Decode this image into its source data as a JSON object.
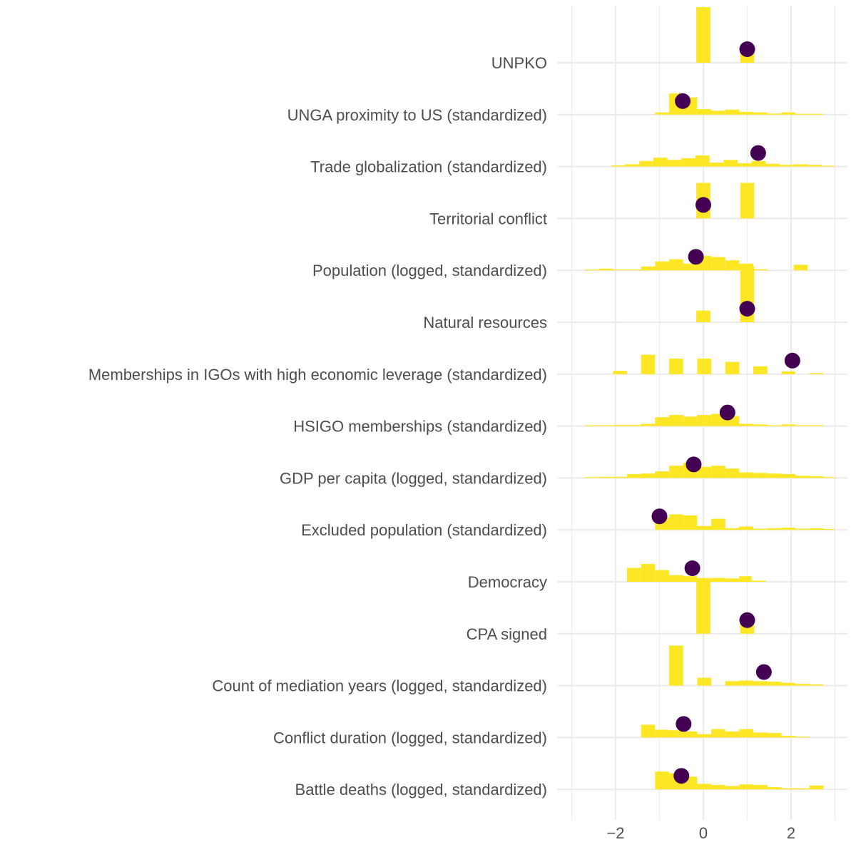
{
  "chart_data": {
    "type": "histogram-dot",
    "title": "",
    "xlabel": "",
    "ylabel": "",
    "xlim": [
      -3.05,
      3.2
    ],
    "x_ticks": [
      -2,
      0,
      2
    ],
    "x_tick_labels": [
      "−2",
      "0",
      "2"
    ],
    "grid": true,
    "bar_color": "#FDE725",
    "dot_color": "#440154",
    "categories": [
      {
        "label": "UNPKO",
        "point": 1.0,
        "bars": [
          [
            -0.16,
            0.16,
            1.0
          ],
          [
            0.84,
            1.16,
            0.22
          ]
        ]
      },
      {
        "label": "UNGA proximity to US (standardized)",
        "point": -0.47,
        "bars": [
          [
            -1.1,
            -0.78,
            0.04
          ],
          [
            -0.78,
            -0.46,
            0.38
          ],
          [
            -0.46,
            -0.14,
            0.31
          ],
          [
            -0.14,
            0.18,
            0.1
          ],
          [
            0.18,
            0.5,
            0.07
          ],
          [
            0.5,
            0.82,
            0.09
          ],
          [
            0.82,
            1.14,
            0.05
          ],
          [
            1.14,
            1.46,
            0.04
          ],
          [
            1.46,
            1.78,
            0.02
          ],
          [
            1.78,
            2.1,
            0.04
          ],
          [
            2.1,
            2.42,
            0.01
          ],
          [
            2.42,
            2.74,
            0.01
          ]
        ]
      },
      {
        "label": "Trade globalization (standardized)",
        "point": 1.25,
        "bars": [
          [
            -2.1,
            -1.78,
            0.02
          ],
          [
            -1.78,
            -1.46,
            0.04
          ],
          [
            -1.46,
            -1.14,
            0.1
          ],
          [
            -1.14,
            -0.82,
            0.16
          ],
          [
            -0.82,
            -0.5,
            0.12
          ],
          [
            -0.5,
            -0.18,
            0.15
          ],
          [
            -0.18,
            0.14,
            0.2
          ],
          [
            0.14,
            0.46,
            0.07
          ],
          [
            0.46,
            0.78,
            0.12
          ],
          [
            0.78,
            1.1,
            0.06
          ],
          [
            1.1,
            1.42,
            0.1
          ],
          [
            1.42,
            1.74,
            0.05
          ],
          [
            1.74,
            2.06,
            0.03
          ],
          [
            2.06,
            2.38,
            0.04
          ],
          [
            2.38,
            2.7,
            0.03
          ],
          [
            2.7,
            3.0,
            0.01
          ]
        ]
      },
      {
        "label": "Territorial conflict",
        "point": 0.0,
        "bars": [
          [
            -0.16,
            0.16,
            0.64
          ],
          [
            0.84,
            1.16,
            0.64
          ]
        ]
      },
      {
        "label": "Population (logged, standardized)",
        "point": -0.17,
        "bars": [
          [
            -2.7,
            -2.38,
            0.01
          ],
          [
            -2.38,
            -2.06,
            0.03
          ],
          [
            -2.06,
            -1.74,
            0.01
          ],
          [
            -1.74,
            -1.42,
            0.01
          ],
          [
            -1.42,
            -1.1,
            0.07
          ],
          [
            -1.1,
            -0.78,
            0.16
          ],
          [
            -0.78,
            -0.46,
            0.2
          ],
          [
            -0.46,
            -0.14,
            0.12
          ],
          [
            -0.14,
            0.18,
            0.26
          ],
          [
            0.18,
            0.5,
            0.24
          ],
          [
            0.5,
            0.82,
            0.18
          ],
          [
            0.82,
            1.14,
            0.12
          ],
          [
            1.14,
            1.46,
            0.02
          ],
          [
            2.06,
            2.38,
            0.1
          ]
        ]
      },
      {
        "label": "Natural resources",
        "point": 1.0,
        "bars": [
          [
            -0.16,
            0.16,
            0.21
          ],
          [
            0.84,
            1.16,
            1.0
          ]
        ]
      },
      {
        "label": "Memberships in IGOs with high economic leverage (standardized)",
        "point": 2.03,
        "bars": [
          [
            -2.06,
            -1.74,
            0.06
          ],
          [
            -1.42,
            -1.1,
            0.35
          ],
          [
            -0.78,
            -0.46,
            0.28
          ],
          [
            -0.14,
            0.18,
            0.28
          ],
          [
            0.5,
            0.82,
            0.22
          ],
          [
            1.14,
            1.46,
            0.14
          ],
          [
            1.78,
            2.1,
            0.05
          ],
          [
            2.42,
            2.74,
            0.02
          ]
        ]
      },
      {
        "label": "HSIGO memberships (standardized)",
        "point": 0.55,
        "bars": [
          [
            -2.7,
            -2.38,
            0.01
          ],
          [
            -2.38,
            -2.06,
            0.01
          ],
          [
            -2.06,
            -1.74,
            0.02
          ],
          [
            -1.74,
            -1.42,
            0.02
          ],
          [
            -1.42,
            -1.1,
            0.04
          ],
          [
            -1.1,
            -0.78,
            0.16
          ],
          [
            -0.78,
            -0.46,
            0.2
          ],
          [
            -0.46,
            -0.14,
            0.17
          ],
          [
            -0.14,
            0.18,
            0.2
          ],
          [
            0.18,
            0.5,
            0.22
          ],
          [
            0.5,
            0.82,
            0.18
          ],
          [
            0.82,
            1.14,
            0.04
          ],
          [
            1.14,
            1.46,
            0.03
          ],
          [
            1.46,
            1.78,
            0.01
          ],
          [
            1.78,
            2.1,
            0.03
          ],
          [
            2.1,
            2.42,
            0.01
          ],
          [
            2.42,
            2.74,
            0.01
          ]
        ]
      },
      {
        "label": "GDP per capita (logged, standardized)",
        "point": -0.22,
        "bars": [
          [
            -2.7,
            -2.38,
            0.01
          ],
          [
            -2.38,
            -2.06,
            0.02
          ],
          [
            -2.06,
            -1.74,
            0.02
          ],
          [
            -1.74,
            -1.42,
            0.07
          ],
          [
            -1.42,
            -1.1,
            0.08
          ],
          [
            -1.1,
            -0.78,
            0.12
          ],
          [
            -0.78,
            -0.46,
            0.22
          ],
          [
            -0.46,
            -0.14,
            0.27
          ],
          [
            -0.14,
            0.18,
            0.2
          ],
          [
            0.18,
            0.5,
            0.22
          ],
          [
            0.5,
            0.82,
            0.17
          ],
          [
            0.82,
            1.14,
            0.1
          ],
          [
            1.14,
            1.46,
            0.09
          ],
          [
            1.46,
            1.78,
            0.08
          ],
          [
            1.78,
            2.1,
            0.07
          ],
          [
            2.1,
            2.42,
            0.04
          ],
          [
            2.42,
            2.74,
            0.03
          ],
          [
            2.74,
            3.0,
            0.01
          ]
        ]
      },
      {
        "label": "Excluded population (standardized)",
        "point": -1.0,
        "bars": [
          [
            -1.1,
            -0.78,
            0.22
          ],
          [
            -0.78,
            -0.46,
            0.28
          ],
          [
            -0.46,
            -0.14,
            0.26
          ],
          [
            -0.14,
            0.18,
            0.07
          ],
          [
            0.18,
            0.5,
            0.2
          ],
          [
            0.5,
            0.82,
            0.03
          ],
          [
            0.82,
            1.14,
            0.06
          ],
          [
            1.14,
            1.46,
            0.02
          ],
          [
            1.46,
            1.78,
            0.03
          ],
          [
            1.78,
            2.1,
            0.04
          ],
          [
            2.1,
            2.42,
            0.02
          ],
          [
            2.42,
            2.74,
            0.03
          ],
          [
            2.74,
            3.0,
            0.01
          ]
        ]
      },
      {
        "label": "Democracy",
        "point": -0.25,
        "bars": [
          [
            -1.74,
            -1.42,
            0.25
          ],
          [
            -1.42,
            -1.1,
            0.32
          ],
          [
            -1.1,
            -0.78,
            0.21
          ],
          [
            -0.78,
            -0.46,
            0.12
          ],
          [
            -0.46,
            -0.14,
            0.1
          ],
          [
            -0.14,
            0.18,
            0.06
          ],
          [
            0.18,
            0.5,
            0.07
          ],
          [
            0.5,
            0.82,
            0.06
          ],
          [
            0.82,
            1.1,
            0.1
          ],
          [
            1.1,
            1.42,
            0.02
          ]
        ]
      },
      {
        "label": "CPA signed",
        "point": 1.0,
        "bars": [
          [
            -0.16,
            0.16,
            1.0
          ],
          [
            0.84,
            1.16,
            0.22
          ]
        ]
      },
      {
        "label": "Count of mediation years (logged, standardized)",
        "point": 1.38,
        "bars": [
          [
            -0.78,
            -0.46,
            0.72
          ],
          [
            -0.14,
            0.18,
            0.14
          ],
          [
            0.5,
            0.82,
            0.08
          ],
          [
            0.82,
            1.14,
            0.09
          ],
          [
            1.14,
            1.46,
            0.08
          ],
          [
            1.46,
            1.78,
            0.07
          ],
          [
            1.78,
            2.1,
            0.05
          ],
          [
            2.1,
            2.42,
            0.03
          ],
          [
            2.42,
            2.74,
            0.02
          ]
        ]
      },
      {
        "label": "Conflict duration (logged, standardized)",
        "point": -0.45,
        "bars": [
          [
            -1.42,
            -1.1,
            0.23
          ],
          [
            -1.1,
            -0.78,
            0.14
          ],
          [
            -0.78,
            -0.46,
            0.13
          ],
          [
            -0.46,
            -0.14,
            0.11
          ],
          [
            -0.14,
            0.18,
            0.06
          ],
          [
            0.18,
            0.5,
            0.15
          ],
          [
            0.5,
            0.82,
            0.11
          ],
          [
            0.82,
            1.14,
            0.15
          ],
          [
            1.14,
            1.46,
            0.09
          ],
          [
            1.46,
            1.78,
            0.08
          ],
          [
            1.78,
            2.1,
            0.03
          ],
          [
            2.1,
            2.42,
            0.01
          ]
        ]
      },
      {
        "label": "Battle deaths (logged, standardized)",
        "point": -0.5,
        "bars": [
          [
            -1.1,
            -0.78,
            0.32
          ],
          [
            -0.78,
            -0.46,
            0.29
          ],
          [
            -0.46,
            -0.14,
            0.23
          ],
          [
            -0.14,
            0.18,
            0.1
          ],
          [
            0.18,
            0.5,
            0.08
          ],
          [
            0.5,
            0.82,
            0.06
          ],
          [
            0.82,
            1.14,
            0.09
          ],
          [
            1.14,
            1.46,
            0.08
          ],
          [
            1.46,
            1.78,
            0.04
          ],
          [
            1.78,
            2.1,
            0.02
          ],
          [
            2.1,
            2.42,
            0.02
          ],
          [
            2.42,
            2.74,
            0.07
          ]
        ]
      }
    ]
  }
}
